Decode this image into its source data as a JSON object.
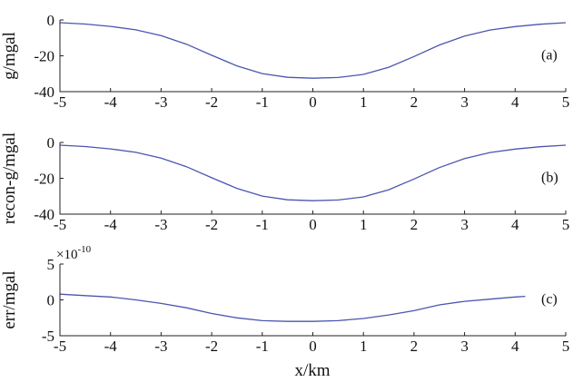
{
  "chart_data": [
    {
      "type": "line",
      "panel_tag": "(a)",
      "ylabel": "g/mgal",
      "xlim": [
        -5,
        5
      ],
      "ylim": [
        -40,
        0
      ],
      "xticks": [
        "-5",
        "-4",
        "-3",
        "-2",
        "-1",
        "0",
        "1",
        "2",
        "3",
        "4",
        "5"
      ],
      "yticks": [
        "0",
        "-20",
        "-40"
      ],
      "series": [
        {
          "color": "#4a56b0",
          "x": [
            -5,
            -4.5,
            -4,
            -3.5,
            -3,
            -2.5,
            -2,
            -1.5,
            -1,
            -0.5,
            0,
            0.5,
            1,
            1.5,
            2,
            2.5,
            3,
            3.5,
            4,
            4.5,
            5
          ],
          "y": [
            -1.5,
            -2.3,
            -3.6,
            -5.5,
            -8.7,
            -13.5,
            -19.7,
            -25.6,
            -29.9,
            -32.0,
            -32.5,
            -32.1,
            -30.4,
            -26.4,
            -20.4,
            -14.0,
            -9.0,
            -5.6,
            -3.7,
            -2.4,
            -1.5
          ]
        }
      ]
    },
    {
      "type": "line",
      "panel_tag": "(b)",
      "ylabel": "recon-g/mgal",
      "xlim": [
        -5,
        5
      ],
      "ylim": [
        -40,
        0
      ],
      "xticks": [
        "-5",
        "-4",
        "-3",
        "-2",
        "-1",
        "0",
        "1",
        "2",
        "3",
        "4",
        "5"
      ],
      "yticks": [
        "0",
        "-20",
        "-40"
      ],
      "series": [
        {
          "color": "#4a56b0",
          "x": [
            -5,
            -4.5,
            -4,
            -3.5,
            -3,
            -2.5,
            -2,
            -1.5,
            -1,
            -0.5,
            0,
            0.5,
            1,
            1.5,
            2,
            2.5,
            3,
            3.5,
            4,
            4.5,
            5
          ],
          "y": [
            -1.5,
            -2.3,
            -3.6,
            -5.5,
            -8.7,
            -13.5,
            -19.7,
            -25.6,
            -29.9,
            -32.0,
            -32.5,
            -32.1,
            -30.4,
            -26.4,
            -20.4,
            -14.0,
            -9.0,
            -5.6,
            -3.7,
            -2.4,
            -1.5
          ]
        }
      ]
    },
    {
      "type": "line",
      "panel_tag": "(c)",
      "ylabel": "err/mgal",
      "scale_prefix": "×10",
      "scale_exponent": "-10",
      "xlabel": "x/km",
      "xlim": [
        -5,
        5
      ],
      "ylim": [
        -5,
        5
      ],
      "xticks": [
        "-5",
        "-4",
        "-3",
        "-2",
        "-1",
        "0",
        "1",
        "2",
        "3",
        "4",
        "5"
      ],
      "yticks": [
        "5",
        "0",
        "-5"
      ],
      "series": [
        {
          "color": "#4a56b0",
          "x": [
            -5,
            -4.5,
            -4,
            -3.5,
            -3,
            -2.5,
            -2,
            -1.5,
            -1,
            -0.5,
            0,
            0.5,
            1,
            1.5,
            2,
            2.5,
            3,
            3.5,
            4,
            4.2
          ],
          "y": [
            0.8,
            0.6,
            0.4,
            0.0,
            -0.5,
            -1.1,
            -1.9,
            -2.5,
            -2.9,
            -3.0,
            -3.0,
            -2.9,
            -2.6,
            -2.1,
            -1.5,
            -0.7,
            -0.2,
            0.1,
            0.4,
            0.5
          ]
        }
      ]
    }
  ]
}
